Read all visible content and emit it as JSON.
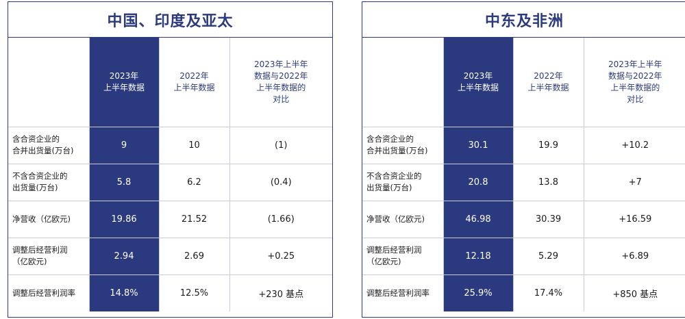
{
  "left": {
    "title": "中国、印度及亚太",
    "headers": [
      "2023年\n上半年数据",
      "2022年\n上半年数据",
      "2023年上半年\n数据与2022年\n上半年数据的\n对比"
    ],
    "rows": [
      {
        "label": "含合资企业的\n合并出货量(万台)",
        "v1": "9",
        "v2": "10",
        "v3": "(1)"
      },
      {
        "label": "不含合资企业的\n出货量(万台)",
        "v1": "5.8",
        "v2": "6.2",
        "v3": "(0.4)"
      },
      {
        "label": "净营收（亿欧元)",
        "v1": "19.86",
        "v2": "21.52",
        "v3": "(1.66)"
      },
      {
        "label": "调整后经营利润\n（亿欧元)",
        "v1": "2.94",
        "v2": "2.69",
        "v3": "+0.25"
      },
      {
        "label": "调整后经营利润率",
        "v1": "14.8%",
        "v2": "12.5%",
        "v3": "+230 基点"
      }
    ]
  },
  "right": {
    "title": "中东及非洲",
    "headers": [
      "2023年\n上半年数据",
      "2022年\n上半年数据",
      "2023年上半年\n数据与2022年\n上半年数据的\n对比"
    ],
    "rows": [
      {
        "label": "含合资企业的\n合并出货量(万台)",
        "v1": "30.1",
        "v2": "19.9",
        "v3": "+10.2"
      },
      {
        "label": "不含合资企业的\n出货量(万台)",
        "v1": "20.8",
        "v2": "13.8",
        "v3": "+7"
      },
      {
        "label": "净营收（亿欧元)",
        "v1": "46.98",
        "v2": "30.39",
        "v3": "+16.59"
      },
      {
        "label": "调整后经营利润\n（亿欧元)",
        "v1": "12.18",
        "v2": "5.29",
        "v3": "+6.89"
      },
      {
        "label": "调整后经营利润率",
        "v1": "25.9%",
        "v2": "17.4%",
        "v3": "+850  基点"
      }
    ]
  }
}
